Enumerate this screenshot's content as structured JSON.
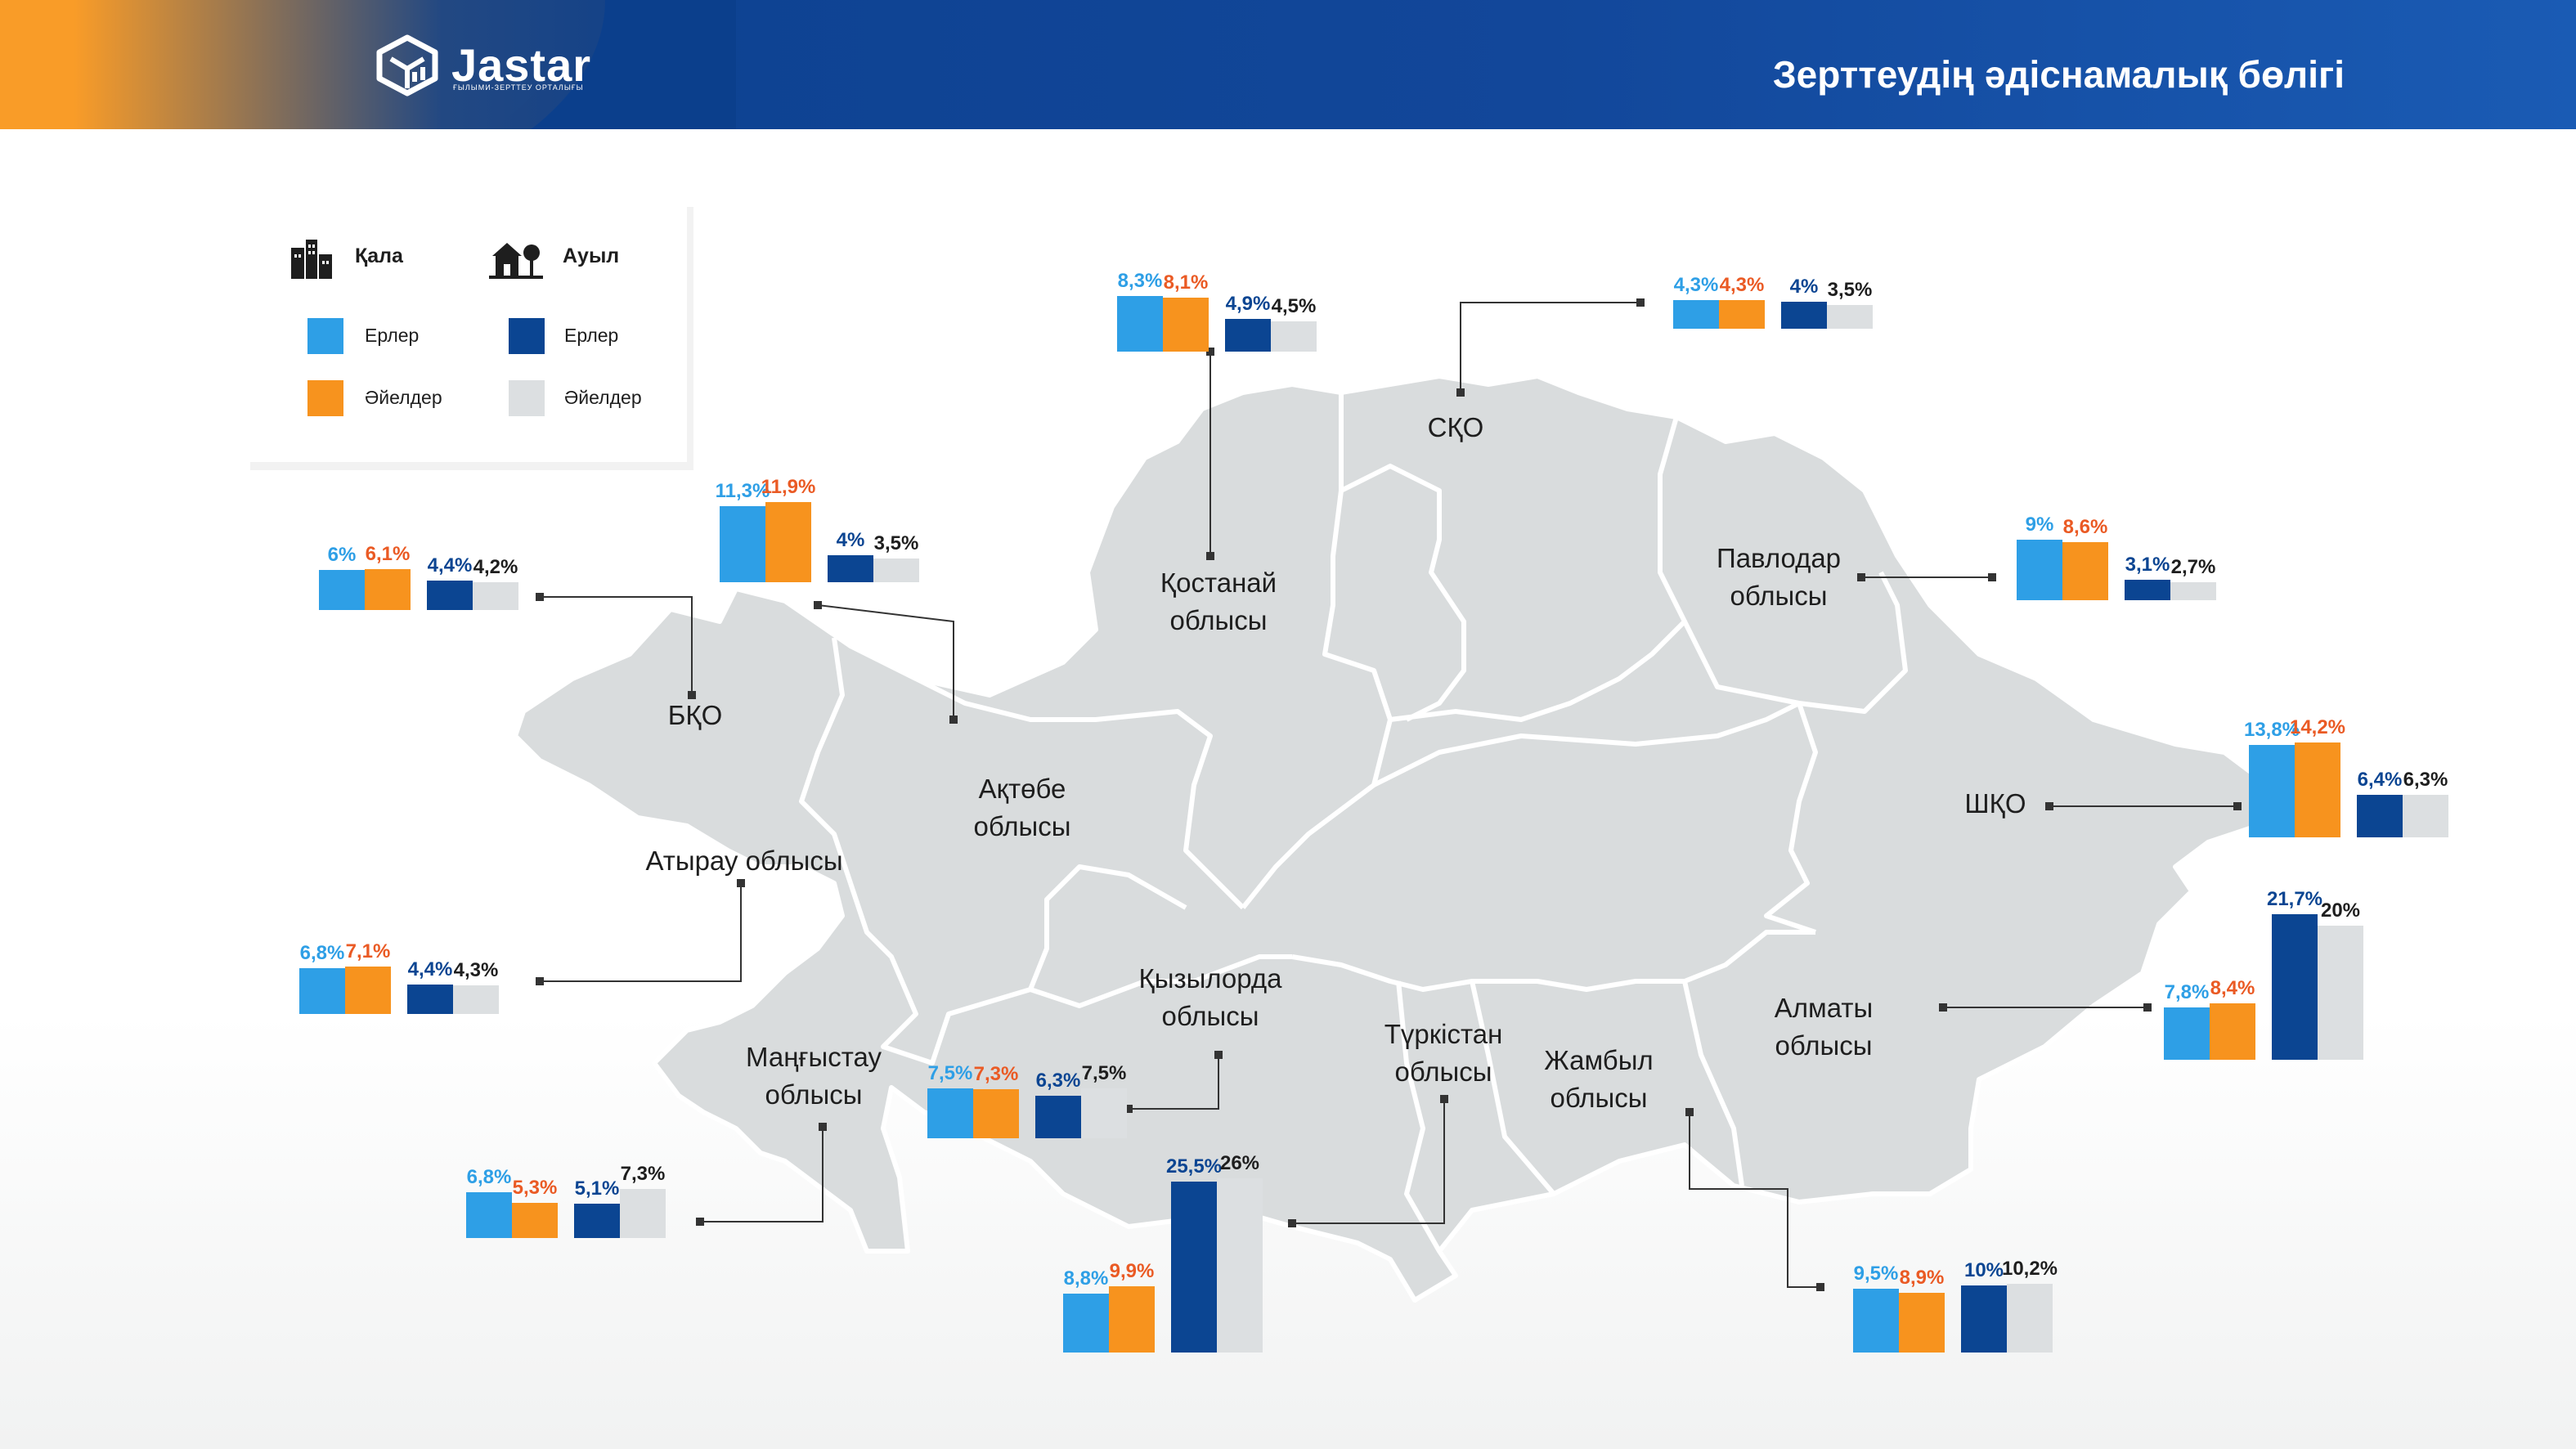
{
  "header": {
    "logo_text": "Jastar",
    "logo_sub": "ҒЫЛЫМИ-ЗЕРТТЕУ ОРТАЛЫҒЫ",
    "title": "Зерттеудің әдіснамалық бөлігі"
  },
  "legend": {
    "city_label": "Қала",
    "village_label": "Ауыл",
    "icons": [
      "city-buildings-icon",
      "village-house-icon"
    ],
    "items": [
      {
        "label": "Ерлер",
        "color": "#2e9fe6"
      },
      {
        "label": "Әйелдер",
        "color": "#f7931e"
      },
      {
        "label": "Ерлер",
        "color": "#0b4592"
      },
      {
        "label": "Әйелдер",
        "color": "#dcdfe1"
      }
    ]
  },
  "colors": {
    "city_men": "#2e9fe6",
    "city_women": "#f7931e",
    "village_men": "#0b4592",
    "village_women": "#dcdfe1",
    "city_men_text": "#2e9fe6",
    "city_women_text": "#ea5a24",
    "village_men_text": "#0b4592",
    "village_women_text": "#1e1e1e"
  },
  "chart_data": {
    "type": "bar",
    "series": [
      {
        "name": "Қала Ерлер"
      },
      {
        "name": "Қала Әйелдер"
      },
      {
        "name": "Ауыл Ерлер"
      },
      {
        "name": "Ауыл Әйелдер"
      }
    ],
    "regions": [
      {
        "name": "Қостанай облысы",
        "values": [
          8.3,
          8.1,
          4.9,
          4.5
        ],
        "labels": [
          "8,3%",
          "8,1%",
          "4,9%",
          "4,5%"
        ]
      },
      {
        "name": "СҚО",
        "values": [
          4.3,
          4.3,
          4,
          3.5
        ],
        "labels": [
          "4,3%",
          "4,3%",
          "4%",
          "3,5%"
        ]
      },
      {
        "name": "БҚО",
        "values": [
          6,
          6.1,
          4.4,
          4.2
        ],
        "labels": [
          "6%",
          "6,1%",
          "4,4%",
          "4,2%"
        ]
      },
      {
        "name": "Ақтөбе облысы",
        "values": [
          11.3,
          11.9,
          4,
          3.5
        ],
        "labels": [
          "11,3%",
          "11,9%",
          "4%",
          "3,5%"
        ]
      },
      {
        "name": "Павлодар облысы",
        "values": [
          9,
          8.6,
          3.1,
          2.7
        ],
        "labels": [
          "9%",
          "8,6%",
          "3,1%",
          "2,7%"
        ]
      },
      {
        "name": "ШҚО",
        "values": [
          13.8,
          14.2,
          6.4,
          6.3
        ],
        "labels": [
          "13,8%",
          "14,2%",
          "6,4%",
          "6,3%"
        ]
      },
      {
        "name": "Атырау облысы",
        "values": [
          6.8,
          7.1,
          4.4,
          4.3
        ],
        "labels": [
          "6,8%",
          "7,1%",
          "4,4%",
          "4,3%"
        ]
      },
      {
        "name": "Алматы облысы",
        "values": [
          7.8,
          8.4,
          21.7,
          20
        ],
        "labels": [
          "7,8%",
          "8,4%",
          "21,7%",
          "20%"
        ]
      },
      {
        "name": "Қызылорда облысы",
        "values": [
          7.5,
          7.3,
          6.3,
          7.5
        ],
        "labels": [
          "7,5%",
          "7,3%",
          "6,3%",
          "7,5%"
        ]
      },
      {
        "name": "Маңғыстау облысы",
        "values": [
          6.8,
          5.3,
          5.1,
          7.3
        ],
        "labels": [
          "6,8%",
          "5,3%",
          "5,1%",
          "7,3%"
        ]
      },
      {
        "name": "Түркістан облысы",
        "values": [
          8.8,
          9.9,
          25.5,
          26
        ],
        "labels": [
          "8,8%",
          "9,9%",
          "25,5%",
          "26%"
        ]
      },
      {
        "name": "Жамбыл облысы",
        "values": [
          9.5,
          8.9,
          10,
          10.2
        ],
        "labels": [
          "9,5%",
          "8,9%",
          "10%",
          "10,2%"
        ]
      }
    ]
  }
}
